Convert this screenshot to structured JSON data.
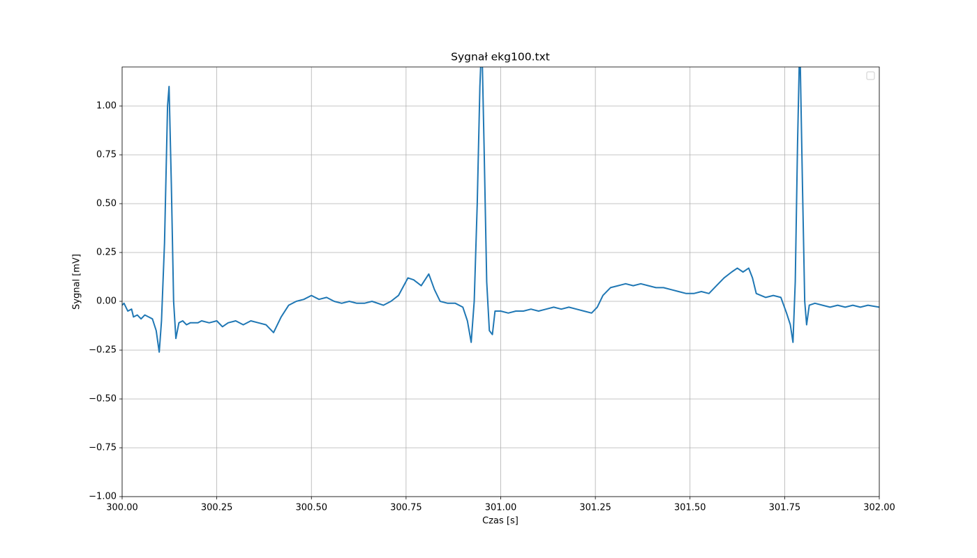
{
  "chart_data": {
    "type": "line",
    "title": "Sygnał ekg100.txt",
    "x_label": "Czas [s]",
    "y_label": "Sygnal [mV]",
    "xlim": [
      300,
      302
    ],
    "ylim": [
      -1,
      1.2
    ],
    "grid": true,
    "xticks": [
      {
        "value": 300,
        "label": "300.00"
      },
      {
        "value": 300.25,
        "label": "300.25"
      },
      {
        "value": 300.5,
        "label": "300.50"
      },
      {
        "value": 300.75,
        "label": "300.75"
      },
      {
        "value": 301,
        "label": "301.00"
      },
      {
        "value": 301.25,
        "label": "301.25"
      },
      {
        "value": 301.5,
        "label": "301.50"
      },
      {
        "value": 301.75,
        "label": "301.75"
      },
      {
        "value": 302,
        "label": "302.00"
      }
    ],
    "yticks": [
      {
        "value": -1,
        "label": "−1.00"
      },
      {
        "value": -0.75,
        "label": "−0.75"
      },
      {
        "value": -0.5,
        "label": "−0.50"
      },
      {
        "value": -0.25,
        "label": "−0.25"
      },
      {
        "value": 0,
        "label": "0.00"
      },
      {
        "value": 0.25,
        "label": "0.25"
      },
      {
        "value": 0.5,
        "label": "0.50"
      },
      {
        "value": 0.75,
        "label": "0.75"
      },
      {
        "value": 1,
        "label": "1.00"
      }
    ],
    "x": [
      300.0,
      300.005,
      300.015,
      300.025,
      300.03,
      300.04,
      300.05,
      300.06,
      300.07,
      300.08,
      300.09,
      300.098,
      300.104,
      300.112,
      300.12,
      300.124,
      300.13,
      300.136,
      300.142,
      300.15,
      300.16,
      300.17,
      300.18,
      300.2,
      300.21,
      300.23,
      300.25,
      300.265,
      300.28,
      300.3,
      300.32,
      300.34,
      300.36,
      300.38,
      300.4,
      300.42,
      300.44,
      300.46,
      300.48,
      300.5,
      300.52,
      300.54,
      300.56,
      300.58,
      300.6,
      300.62,
      300.64,
      300.66,
      300.69,
      300.71,
      300.73,
      300.755,
      300.77,
      300.79,
      300.81,
      300.825,
      300.84,
      300.86,
      300.88,
      300.9,
      300.912,
      300.922,
      300.93,
      300.938,
      300.945,
      300.95,
      300.956,
      300.963,
      300.97,
      300.978,
      300.985,
      301.0,
      301.02,
      301.04,
      301.06,
      301.08,
      301.1,
      301.12,
      301.14,
      301.16,
      301.18,
      301.2,
      301.22,
      301.24,
      301.255,
      301.27,
      301.29,
      301.31,
      301.33,
      301.35,
      301.37,
      301.39,
      301.41,
      301.43,
      301.45,
      301.47,
      301.49,
      301.51,
      301.53,
      301.55,
      301.57,
      301.59,
      301.61,
      301.625,
      301.64,
      301.655,
      301.665,
      301.675,
      301.7,
      301.72,
      301.74,
      301.755,
      301.765,
      301.772,
      301.778,
      301.784,
      301.79,
      301.797,
      301.803,
      301.808,
      301.815,
      301.83,
      301.85,
      301.87,
      301.89,
      301.91,
      301.93,
      301.95,
      301.97,
      302.0
    ],
    "series": [
      {
        "color": "#1f77b4",
        "values": [
          -0.02,
          -0.01,
          -0.05,
          -0.04,
          -0.08,
          -0.07,
          -0.09,
          -0.07,
          -0.08,
          -0.09,
          -0.15,
          -0.26,
          -0.1,
          0.3,
          1.0,
          1.1,
          0.6,
          0.0,
          -0.19,
          -0.11,
          -0.1,
          -0.12,
          -0.11,
          -0.11,
          -0.1,
          -0.11,
          -0.1,
          -0.13,
          -0.11,
          -0.1,
          -0.12,
          -0.1,
          -0.11,
          -0.12,
          -0.16,
          -0.08,
          -0.02,
          0.0,
          0.01,
          0.03,
          0.01,
          0.02,
          0.0,
          -0.01,
          0.0,
          -0.01,
          -0.01,
          0.0,
          -0.02,
          0.0,
          0.03,
          0.12,
          0.11,
          0.08,
          0.14,
          0.06,
          0.0,
          -0.01,
          -0.01,
          -0.03,
          -0.1,
          -0.21,
          0.0,
          0.5,
          1.1,
          1.35,
          0.8,
          0.1,
          -0.15,
          -0.17,
          -0.05,
          -0.05,
          -0.06,
          -0.05,
          -0.05,
          -0.04,
          -0.05,
          -0.04,
          -0.03,
          -0.04,
          -0.03,
          -0.04,
          -0.05,
          -0.06,
          -0.03,
          0.03,
          0.07,
          0.08,
          0.09,
          0.08,
          0.09,
          0.08,
          0.07,
          0.07,
          0.06,
          0.05,
          0.04,
          0.04,
          0.05,
          0.04,
          0.08,
          0.12,
          0.15,
          0.17,
          0.15,
          0.17,
          0.12,
          0.04,
          0.02,
          0.03,
          0.02,
          -0.06,
          -0.12,
          -0.21,
          0.1,
          0.8,
          1.35,
          0.6,
          0.0,
          -0.12,
          -0.02,
          -0.01,
          -0.02,
          -0.03,
          -0.02,
          -0.03,
          -0.02,
          -0.03,
          -0.02,
          -0.03
        ]
      }
    ]
  }
}
